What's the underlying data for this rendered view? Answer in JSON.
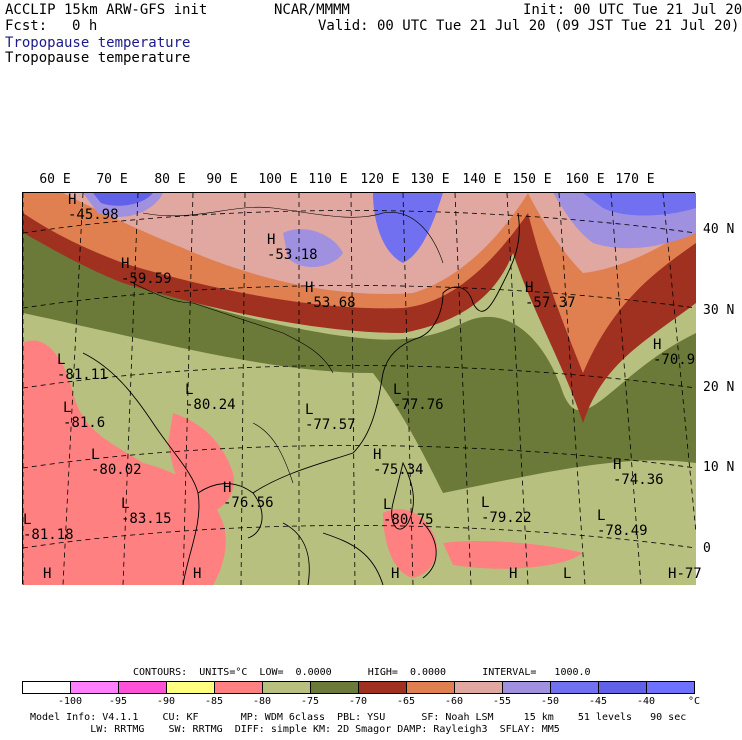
{
  "header": {
    "model": "ACCLIP 15km ARW-GFS init",
    "org": "NCAR/MMMM",
    "init": "Init: 00 UTC Tue 21 Jul 20",
    "fcst_label": "Fcst:",
    "fcst_value": "0 h",
    "valid": "Valid: 00 UTC Tue 21 Jul 20 (09 JST Tue 21 Jul 20)",
    "field1": "Tropopause temperature",
    "field2": "Tropopause temperature"
  },
  "map": {
    "lon_labels": [
      "60 E",
      "70 E",
      "80 E",
      "90 E",
      "100 E",
      "110 E",
      "120 E",
      "130 E",
      "140 E",
      "150 E",
      "160 E",
      "170 E"
    ],
    "lat_labels": [
      "40 N",
      "30 N",
      "20 N",
      "10 N",
      "0"
    ],
    "highs_lows": [
      {
        "letter": "H",
        "value": "-45.98"
      },
      {
        "letter": "H",
        "value": "-59.59"
      },
      {
        "letter": "H",
        "value": "-53.18"
      },
      {
        "letter": "H",
        "value": "-53.68"
      },
      {
        "letter": "H",
        "value": "-57.37"
      },
      {
        "letter": "H",
        "value": "-70.9"
      },
      {
        "letter": "L",
        "value": "-81.11"
      },
      {
        "letter": "L",
        "value": "-81.6"
      },
      {
        "letter": "L",
        "value": "-80.24"
      },
      {
        "letter": "L",
        "value": "-77.57"
      },
      {
        "letter": "L",
        "value": "-77.76"
      },
      {
        "letter": "L",
        "value": "-80.02"
      },
      {
        "letter": "H",
        "value": "-75.34"
      },
      {
        "letter": "H",
        "value": "-74.36"
      },
      {
        "letter": "H",
        "value": "-76.56"
      },
      {
        "letter": "L",
        "value": "-83.15"
      },
      {
        "letter": "L",
        "value": "-80.75"
      },
      {
        "letter": "L",
        "value": "-79.22"
      },
      {
        "letter": "L",
        "value": "-78.49"
      },
      {
        "letter": "L",
        "value": "-81.18"
      },
      {
        "letter": "H",
        "value": "-77"
      },
      {
        "letter": "H",
        "value": ""
      },
      {
        "letter": "H",
        "value": ""
      },
      {
        "letter": "H",
        "value": ""
      },
      {
        "letter": "H",
        "value": ""
      },
      {
        "letter": "L",
        "value": ""
      }
    ]
  },
  "legend": {
    "contours_line": "CONTOURS:  UNITS=°C  LOW=  0.0000      HIGH=  0.0000      INTERVAL=   1000.0",
    "colors": [
      "#ffffff",
      "#ff80ff",
      "#ff50d8",
      "#ffff80",
      "#ff8080",
      "#b8c080",
      "#6b7a38",
      "#a03020",
      "#e08050",
      "#e0a8a0",
      "#a090e0",
      "#7070f0",
      "#6060e8",
      "#7070ff"
    ],
    "ticks": [
      "-100",
      "-95",
      "-90",
      "-85",
      "-80",
      "-75",
      "-70",
      "-65",
      "-60",
      "-55",
      "-50",
      "-45",
      "-40",
      "°C"
    ]
  },
  "footer": {
    "line1": "Model Info: V4.1.1    CU: KF       MP: WDM 6class  PBL: YSU      SF: Noah LSM     15 km    51 levels   90 sec",
    "line2": "          LW: RRTMG    SW: RRTMG  DIFF: simple KM: 2D Smagor DAMP: Rayleigh3  SFLAY: MM5"
  }
}
